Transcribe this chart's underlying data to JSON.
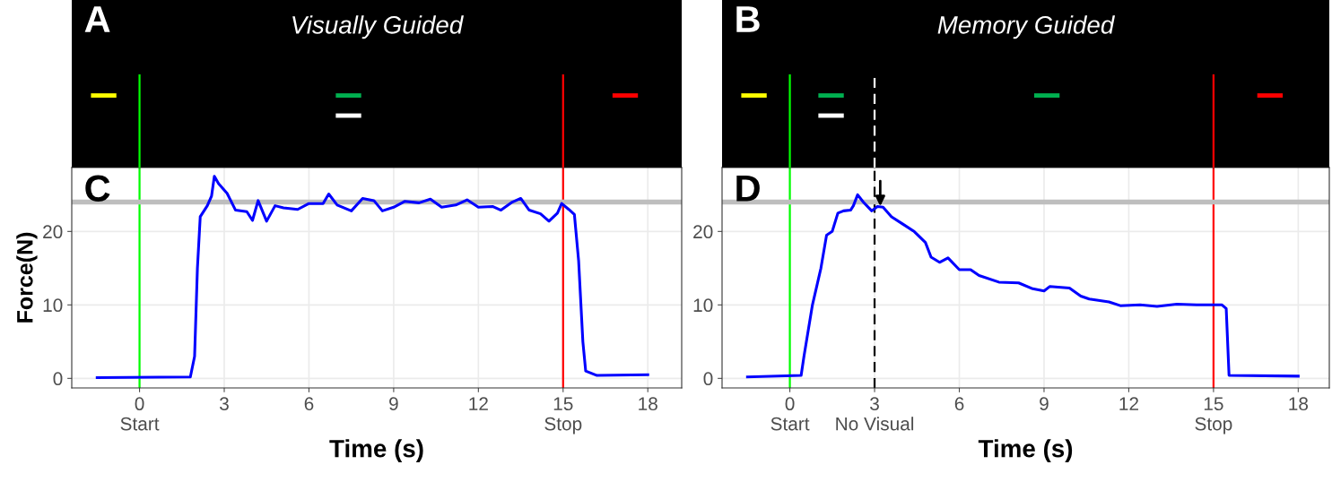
{
  "chart_data": [
    {
      "type": "line",
      "title": "Visually Guided",
      "xlabel": "Time (s)",
      "ylabel": "Force(N)",
      "annotations": [
        "A",
        "C"
      ],
      "x": [
        -1.5,
        1.8,
        1.95,
        2.05,
        2.15,
        2.4,
        2.55,
        2.65,
        2.8,
        3.1,
        3.4,
        3.8,
        4.0,
        4.2,
        4.5,
        4.8,
        5.1,
        5.6,
        6.0,
        6.5,
        6.7,
        7.0,
        7.5,
        7.9,
        8.3,
        8.6,
        9.0,
        9.4,
        9.9,
        10.3,
        10.7,
        11.2,
        11.6,
        12.0,
        12.5,
        12.8,
        13.2,
        13.5,
        13.8,
        14.2,
        14.5,
        14.8,
        14.95,
        15.2,
        15.4,
        15.55,
        15.7,
        15.8,
        16.2,
        18
      ],
      "series": [
        {
          "color": "#0000ff",
          "values": [
            0.1,
            0.2,
            3,
            15,
            22,
            23.5,
            24.8,
            27.5,
            26.5,
            25.2,
            22.9,
            22.7,
            21.5,
            24.2,
            21.4,
            23.5,
            23.2,
            23.0,
            23.8,
            23.8,
            25.1,
            23.6,
            22.8,
            24.5,
            24.2,
            22.8,
            23.3,
            24.1,
            23.9,
            24.4,
            23.3,
            23.6,
            24.3,
            23.3,
            23.4,
            22.9,
            24.0,
            24.5,
            22.9,
            22.4,
            21.4,
            22.5,
            23.8,
            23.0,
            22.3,
            16,
            5,
            1.0,
            0.4,
            0.5
          ]
        }
      ],
      "xlim": [
        -2.4,
        19.2
      ],
      "ylim": [
        -1.3,
        28.7
      ],
      "xticks": [
        {
          "value": 0,
          "label": "0\nStart"
        },
        3,
        6,
        9,
        12,
        {
          "value": 15,
          "label": "15\nStop"
        },
        18
      ],
      "yticks": [
        0,
        10,
        20
      ],
      "ref_lines": [
        {
          "axis": "x",
          "value": 0,
          "color": "#00ff00"
        },
        {
          "axis": "x",
          "value": 15,
          "color": "#ff0000"
        },
        {
          "axis": "y",
          "value": 24,
          "color": "#bebebe"
        }
      ],
      "grid": true,
      "line_style": "solid"
    },
    {
      "type": "line",
      "title": "Memory Guided",
      "xlabel": "Time (s)",
      "annotations": [
        "B",
        "D"
      ],
      "x": [
        -1.5,
        0.4,
        0.5,
        0.8,
        1.1,
        1.3,
        1.5,
        1.7,
        1.9,
        2.15,
        2.25,
        2.4,
        2.6,
        2.8,
        2.9,
        3.1,
        3.3,
        3.6,
        4.0,
        4.4,
        4.8,
        5.0,
        5.3,
        5.6,
        6.0,
        6.4,
        6.7,
        7.4,
        8.1,
        8.6,
        9.0,
        9.2,
        9.9,
        10.3,
        10.6,
        11.3,
        11.7,
        12.4,
        13.0,
        13.7,
        14.4,
        15.3,
        15.45,
        15.55,
        18
      ],
      "series": [
        {
          "color": "#0000ff",
          "values": [
            0.2,
            0.4,
            3,
            10,
            15,
            19.5,
            20,
            22.5,
            22.8,
            22.9,
            23.5,
            25.0,
            24.0,
            23.2,
            22.8,
            23.4,
            23.3,
            22.0,
            21.0,
            20.0,
            18.5,
            16.5,
            15.8,
            16.4,
            14.8,
            14.8,
            14.0,
            13.1,
            13.0,
            12.2,
            11.9,
            12.5,
            12.3,
            11.2,
            10.8,
            10.4,
            9.9,
            10.0,
            9.8,
            10.1,
            10.0,
            10.0,
            9.5,
            0.4,
            0.3
          ]
        }
      ],
      "xlim": [
        -2.4,
        19.1
      ],
      "ylim": [
        -1.3,
        28.7
      ],
      "xticks": [
        {
          "value": 0,
          "label": "0\nStart"
        },
        {
          "value": 3,
          "label": "3\nNo Visual"
        },
        6,
        9,
        12,
        {
          "value": 15,
          "label": "15\nStop"
        },
        18
      ],
      "yticks": [
        0,
        10,
        20
      ],
      "ref_lines": [
        {
          "axis": "x",
          "value": 0,
          "color": "#00ff00"
        },
        {
          "axis": "x",
          "value": 3,
          "color": "#000000",
          "line_style": "dashed"
        },
        {
          "axis": "x",
          "value": 15,
          "color": "#ff0000"
        },
        {
          "axis": "y",
          "value": 24,
          "color": "#bebebe"
        }
      ],
      "grid": true,
      "line_style": "solid"
    }
  ]
}
